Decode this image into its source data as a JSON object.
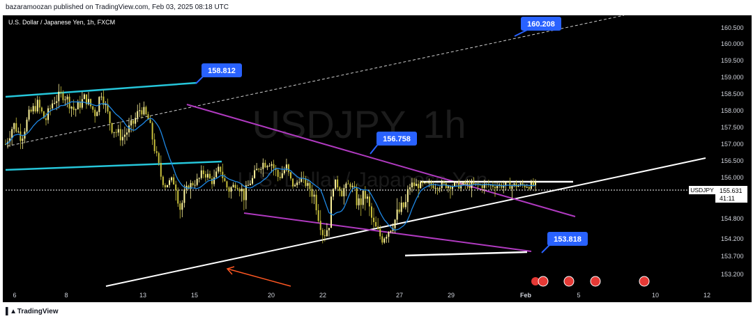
{
  "header": {
    "published": "bazaramoozan published on TradingView.com, Feb 03, 2025 08:18 UTC"
  },
  "footer": {
    "brand": "TradingView",
    "logo_icon": "tradingview-logo-icon"
  },
  "colors": {
    "background": "#000000",
    "candle_up": "#fff59d",
    "candle_down": "#c8c03c",
    "moving_average": "#1e88e5",
    "channel": "#26c6da",
    "wedge": "#b03ac0",
    "trendline": "#ffffff",
    "callout": "#2962ff",
    "arrow": "#ff5722",
    "event_red": "#e53935"
  },
  "chart_data": {
    "type": "candlestick",
    "symbol_line": "U.S. Dollar / Japanese Yen, 1h, FXCM",
    "watermark": "USDJPY, 1h",
    "watermark_sub": "U.S. Dollar / Japanese Yen",
    "price_tag": {
      "label": "USDJPY",
      "value": "155.631",
      "countdown": "41:11"
    },
    "x_ticks": [
      "6",
      "8",
      "13",
      "15",
      "20",
      "22",
      "27",
      "29",
      "Feb",
      "5",
      "10",
      "12"
    ],
    "y_ticks": [
      "160.500",
      "160.000",
      "159.500",
      "159.000",
      "158.500",
      "158.000",
      "157.500",
      "157.000",
      "156.500",
      "156.000",
      "155.400",
      "154.800",
      "154.200",
      "153.700",
      "153.200"
    ],
    "ylim": [
      153.0,
      161.0
    ],
    "callouts": [
      "160.208",
      "158.812",
      "156.758",
      "153.818"
    ],
    "price_path": [
      [
        0,
        157.0
      ],
      [
        0.015,
        157.6
      ],
      [
        0.03,
        157.2
      ],
      [
        0.045,
        157.9
      ],
      [
        0.06,
        158.2
      ],
      [
        0.075,
        157.7
      ],
      [
        0.09,
        158.3
      ],
      [
        0.11,
        158.5
      ],
      [
        0.13,
        158.0
      ],
      [
        0.15,
        158.4
      ],
      [
        0.17,
        157.9
      ],
      [
        0.18,
        158.6
      ],
      [
        0.2,
        157.5
      ],
      [
        0.22,
        157.2
      ],
      [
        0.24,
        157.6
      ],
      [
        0.255,
        158.1
      ],
      [
        0.27,
        157.7
      ],
      [
        0.285,
        156.6
      ],
      [
        0.3,
        155.6
      ],
      [
        0.315,
        155.9
      ],
      [
        0.33,
        155.0
      ],
      [
        0.345,
        155.6
      ],
      [
        0.36,
        155.8
      ],
      [
        0.375,
        156.2
      ],
      [
        0.39,
        155.8
      ],
      [
        0.405,
        156.3
      ],
      [
        0.42,
        155.4
      ],
      [
        0.435,
        155.7
      ],
      [
        0.45,
        155.3
      ],
      [
        0.465,
        155.9
      ],
      [
        0.48,
        156.4
      ],
      [
        0.5,
        156.5
      ],
      [
        0.515,
        156.0
      ],
      [
        0.53,
        156.3
      ],
      [
        0.545,
        155.5
      ],
      [
        0.555,
        156.0
      ],
      [
        0.57,
        155.6
      ],
      [
        0.585,
        155.2
      ],
      [
        0.6,
        154.3
      ],
      [
        0.61,
        154.6
      ],
      [
        0.62,
        155.8
      ],
      [
        0.635,
        155.4
      ],
      [
        0.65,
        155.7
      ],
      [
        0.665,
        155.1
      ],
      [
        0.68,
        155.3
      ],
      [
        0.695,
        154.6
      ],
      [
        0.71,
        154.2
      ],
      [
        0.725,
        154.5
      ],
      [
        0.74,
        154.9
      ],
      [
        0.755,
        155.1
      ],
      [
        0.765,
        155.7
      ],
      [
        0.77,
        155.63
      ]
    ],
    "events": 4
  }
}
